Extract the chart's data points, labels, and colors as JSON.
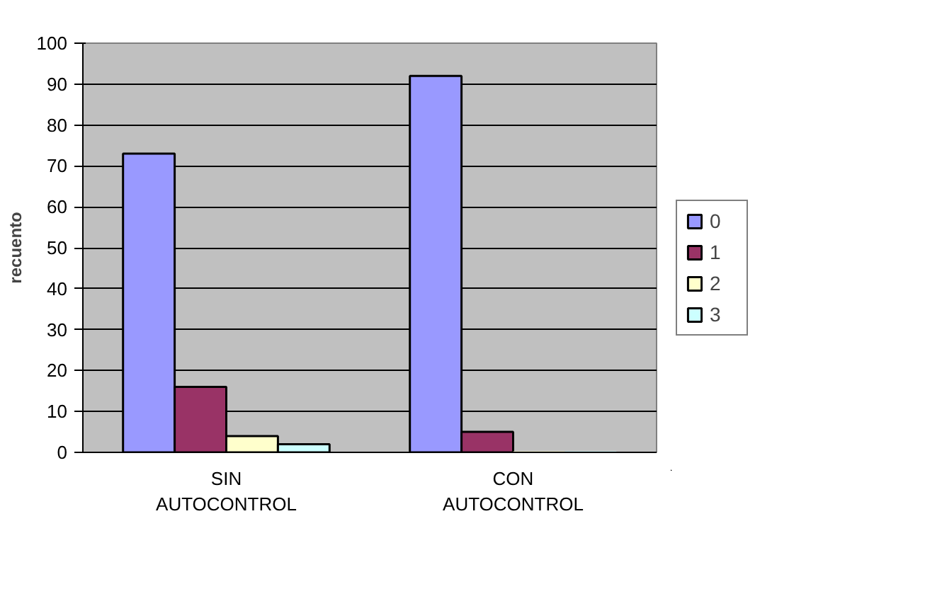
{
  "chart_data": {
    "type": "bar",
    "ylabel": "recuento",
    "categories": [
      "SIN AUTOCONTROL",
      "CON AUTOCONTROL"
    ],
    "series": [
      {
        "name": "0",
        "color": "#9999ff",
        "values": [
          73,
          92
        ]
      },
      {
        "name": "1",
        "color": "#993366",
        "values": [
          16,
          5
        ]
      },
      {
        "name": "2",
        "color": "#ffffcc",
        "values": [
          4,
          0
        ]
      },
      {
        "name": "3",
        "color": "#ccffff",
        "values": [
          2,
          0
        ]
      }
    ],
    "ylim": [
      0,
      100
    ],
    "yticks": [
      0,
      10,
      20,
      30,
      40,
      50,
      60,
      70,
      80,
      90,
      100
    ],
    "grid": "y",
    "legend": "right"
  }
}
